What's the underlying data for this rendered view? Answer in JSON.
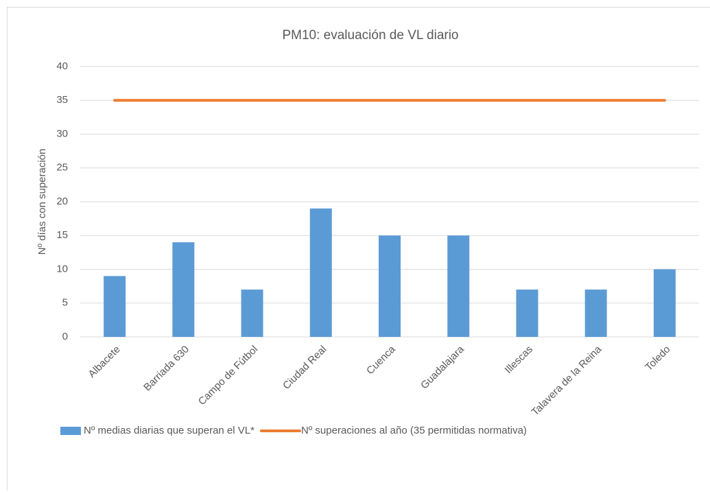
{
  "chart_data": {
    "type": "bar",
    "title": "PM10: evaluación de VL diario",
    "y_label": "Nº días con superación",
    "categories": [
      "Albacete",
      "Barriada 630",
      "Campo de Fútbol",
      "Ciudad Real",
      "Cuenca",
      "Guadalajara",
      "Illescas",
      "Talavera de la Reina",
      "Toledo"
    ],
    "series": [
      {
        "name": "Nº medias diarias que superan el VL*",
        "type": "bar",
        "color": "#5b9bd5",
        "values": [
          9,
          14,
          7,
          19,
          15,
          15,
          7,
          7,
          10
        ]
      },
      {
        "name": "Nº superaciones al año (35 permitidas normativa)",
        "type": "line",
        "color": "#ed7d31",
        "values": [
          35,
          35,
          35,
          35,
          35,
          35,
          35,
          35,
          35
        ]
      }
    ],
    "ylim": [
      0,
      40
    ],
    "yticks": [
      0,
      5,
      10,
      15,
      20,
      25,
      30,
      35,
      40
    ],
    "grid": true,
    "legend": "bottom"
  }
}
